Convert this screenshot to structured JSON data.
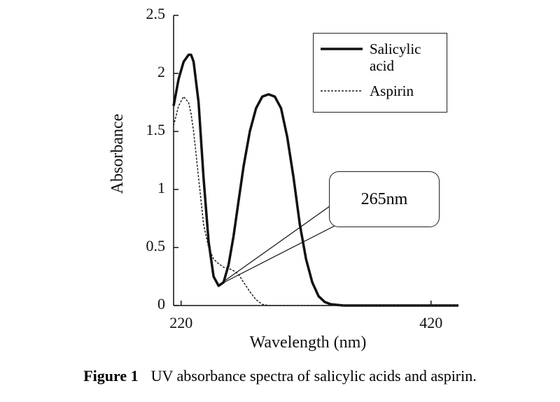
{
  "chart_data": {
    "type": "line",
    "xlabel": "Wavelength (nm)",
    "ylabel": "Absorbance",
    "annotation": "265nm",
    "caption_label": "Figure 1",
    "caption": "UV absorbance spectra of salicylic acids and aspirin.",
    "x": [
      214,
      218,
      222,
      226,
      228,
      230,
      234,
      238,
      242,
      246,
      250,
      254,
      258,
      262,
      266,
      270,
      275,
      280,
      285,
      290,
      295,
      300,
      305,
      310,
      315,
      320,
      325,
      330,
      335,
      340,
      350,
      360,
      380,
      400,
      420,
      442
    ],
    "series": [
      {
        "name": "Salicylic acid",
        "color": "#111111",
        "dash": false,
        "width": 3.5,
        "values": [
          1.72,
          1.95,
          2.1,
          2.16,
          2.16,
          2.1,
          1.75,
          1.1,
          0.55,
          0.25,
          0.17,
          0.2,
          0.35,
          0.6,
          0.9,
          1.2,
          1.5,
          1.7,
          1.8,
          1.82,
          1.8,
          1.7,
          1.45,
          1.1,
          0.7,
          0.4,
          0.2,
          0.08,
          0.03,
          0.01,
          0,
          0,
          0,
          0,
          0,
          0
        ]
      },
      {
        "name": "Aspirin",
        "color": "#222222",
        "dash": true,
        "width": 1.5,
        "values": [
          1.55,
          1.72,
          1.8,
          1.75,
          1.65,
          1.5,
          1.1,
          0.7,
          0.5,
          0.4,
          0.36,
          0.33,
          0.32,
          0.3,
          0.27,
          0.2,
          0.12,
          0.05,
          0.01,
          0,
          0,
          0,
          0,
          0,
          0,
          0,
          0,
          0,
          0,
          0,
          0,
          0,
          0,
          0,
          0,
          0
        ]
      }
    ],
    "xlim": [
      214,
      442
    ],
    "xticks": [
      220,
      420
    ],
    "ylim": [
      0,
      2.5
    ],
    "yticks": [
      0,
      0.5,
      1,
      1.5,
      2,
      2.5
    ],
    "grid": false
  }
}
